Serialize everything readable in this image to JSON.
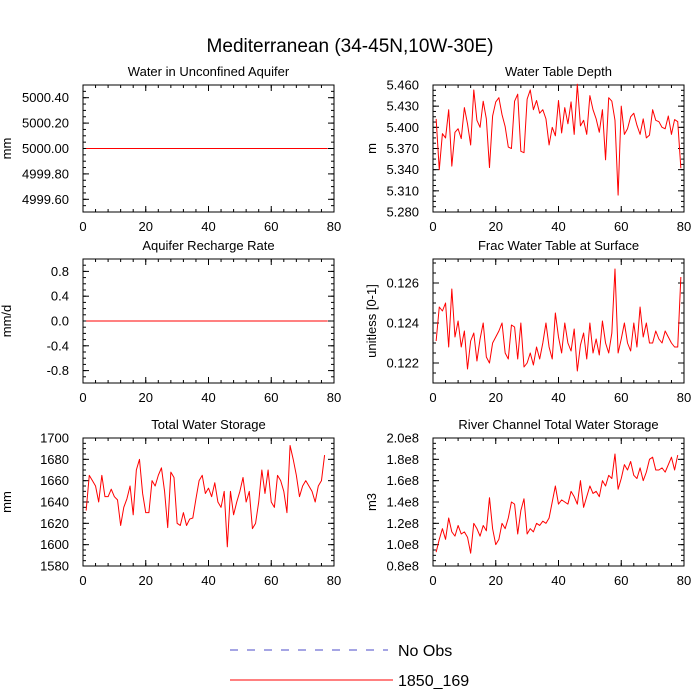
{
  "figure_title": "Mediterranean (34-45N,10W-30E)",
  "legend": [
    {
      "label": "No Obs",
      "color": "#4b4bc8",
      "style": "dashed"
    },
    {
      "label": "1850_169",
      "color": "#ff0000",
      "style": "solid"
    }
  ],
  "chart_data": [
    {
      "type": "line",
      "title": "Water in Unconfined Aquifer",
      "ylabel": "mm",
      "xlim": [
        0,
        80
      ],
      "ylim": [
        4999.5,
        5000.5
      ],
      "xticks": [
        0,
        20,
        40,
        60,
        80
      ],
      "xtick_labels": [
        "0",
        "20",
        "40",
        "60",
        "80"
      ],
      "yticks": [
        4999.6,
        4999.8,
        5000.0,
        5000.2,
        5000.4
      ],
      "ytick_labels": [
        "4999.60",
        "4999.80",
        "5000.00",
        "5000.20",
        "5000.40"
      ],
      "series": [
        {
          "name": "1850_169",
          "color": "#ff0000",
          "x_start": 1,
          "x_step": 1,
          "values": [
            5000,
            5000,
            5000,
            5000,
            5000,
            5000,
            5000,
            5000,
            5000,
            5000,
            5000,
            5000,
            5000,
            5000,
            5000,
            5000,
            5000,
            5000,
            5000,
            5000,
            5000,
            5000,
            5000,
            5000,
            5000,
            5000,
            5000,
            5000,
            5000,
            5000,
            5000,
            5000,
            5000,
            5000,
            5000,
            5000,
            5000,
            5000,
            5000,
            5000,
            5000,
            5000,
            5000,
            5000,
            5000,
            5000,
            5000,
            5000,
            5000,
            5000,
            5000,
            5000,
            5000,
            5000,
            5000,
            5000,
            5000,
            5000,
            5000,
            5000,
            5000,
            5000,
            5000,
            5000,
            5000,
            5000,
            5000,
            5000,
            5000,
            5000,
            5000,
            5000,
            5000,
            5000,
            5000,
            5000,
            5000,
            5000
          ]
        }
      ]
    },
    {
      "type": "line",
      "title": "Water Table Depth",
      "ylabel": "m",
      "xlim": [
        0,
        80
      ],
      "ylim": [
        5.28,
        5.46
      ],
      "xticks": [
        0,
        20,
        40,
        60,
        80
      ],
      "xtick_labels": [
        "0",
        "20",
        "40",
        "60",
        "80"
      ],
      "yticks": [
        5.28,
        5.31,
        5.34,
        5.37,
        5.4,
        5.43,
        5.46
      ],
      "ytick_labels": [
        "5.280",
        "5.310",
        "5.340",
        "5.370",
        "5.400",
        "5.430",
        "5.460"
      ],
      "series": [
        {
          "name": "1850_169",
          "color": "#ff0000",
          "x_start": 1,
          "x_step": 1,
          "values": [
            5.412,
            5.34,
            5.391,
            5.385,
            5.425,
            5.345,
            5.393,
            5.398,
            5.384,
            5.428,
            5.405,
            5.375,
            5.453,
            5.41,
            5.4,
            5.437,
            5.412,
            5.343,
            5.416,
            5.436,
            5.442,
            5.418,
            5.401,
            5.372,
            5.37,
            5.437,
            5.447,
            5.366,
            5.364,
            5.44,
            5.453,
            5.425,
            5.438,
            5.42,
            5.425,
            5.412,
            5.375,
            5.4,
            5.388,
            5.438,
            5.392,
            5.428,
            5.405,
            5.436,
            5.39,
            5.461,
            5.402,
            5.41,
            5.39,
            5.445,
            5.425,
            5.412,
            5.393,
            5.425,
            5.354,
            5.442,
            5.437,
            5.41,
            5.304,
            5.43,
            5.39,
            5.398,
            5.415,
            5.42,
            5.403,
            5.39,
            5.412,
            5.385,
            5.389,
            5.425,
            5.41,
            5.408,
            5.4,
            5.398,
            5.416,
            5.39,
            5.411,
            5.408,
            5.342
          ]
        }
      ]
    },
    {
      "type": "line",
      "title": "Aquifer Recharge Rate",
      "ylabel": "mm/d",
      "xlim": [
        0,
        80
      ],
      "ylim": [
        -1.0,
        1.0
      ],
      "xticks": [
        0,
        20,
        40,
        60,
        80
      ],
      "xtick_labels": [
        "0",
        "20",
        "40",
        "60",
        "80"
      ],
      "yticks": [
        -0.8,
        -0.4,
        0.0,
        0.4,
        0.8
      ],
      "ytick_labels": [
        "-0.8",
        "-0.4",
        "0.0",
        "0.4",
        "0.8"
      ],
      "series": [
        {
          "name": "1850_169",
          "color": "#ff0000",
          "x_start": 1,
          "x_step": 1,
          "values": [
            0,
            0,
            0,
            0,
            0,
            0,
            0,
            0,
            0,
            0,
            0,
            0,
            0,
            0,
            0,
            0,
            0,
            0,
            0,
            0,
            0,
            0,
            0,
            0,
            0,
            0,
            0,
            0,
            0,
            0,
            0,
            0,
            0,
            0,
            0,
            0,
            0,
            0,
            0,
            0,
            0,
            0,
            0,
            0,
            0,
            0,
            0,
            0,
            0,
            0,
            0,
            0,
            0,
            0,
            0,
            0,
            0,
            0,
            0,
            0,
            0,
            0,
            0,
            0,
            0,
            0,
            0,
            0,
            0,
            0,
            0,
            0,
            0,
            0,
            0,
            0,
            0,
            0
          ]
        }
      ]
    },
    {
      "type": "line",
      "title": "Frac Water Table at Surface",
      "ylabel": "unitless [0-1]",
      "xlim": [
        0,
        80
      ],
      "ylim": [
        0.121,
        0.1272
      ],
      "xticks": [
        0,
        20,
        40,
        60,
        80
      ],
      "xtick_labels": [
        "0",
        "20",
        "40",
        "60",
        "80"
      ],
      "yticks": [
        0.122,
        0.124,
        0.126
      ],
      "ytick_labels": [
        "0.122",
        "0.124",
        "0.126"
      ],
      "series": [
        {
          "name": "1850_169",
          "color": "#ff0000",
          "x_start": 1,
          "x_step": 1,
          "values": [
            0.1231,
            0.1248,
            0.1246,
            0.125,
            0.1228,
            0.1257,
            0.1233,
            0.1241,
            0.1228,
            0.1236,
            0.1217,
            0.1231,
            0.1235,
            0.1221,
            0.1232,
            0.124,
            0.1223,
            0.122,
            0.123,
            0.1233,
            0.1236,
            0.124,
            0.1225,
            0.1222,
            0.1239,
            0.1238,
            0.1222,
            0.124,
            0.1218,
            0.122,
            0.1225,
            0.1219,
            0.1228,
            0.1222,
            0.123,
            0.124,
            0.1228,
            0.1222,
            0.1245,
            0.1233,
            0.1225,
            0.124,
            0.123,
            0.1226,
            0.1237,
            0.1216,
            0.1229,
            0.1235,
            0.1222,
            0.124,
            0.1225,
            0.1232,
            0.1224,
            0.1241,
            0.123,
            0.1225,
            0.1235,
            0.1267,
            0.1225,
            0.1232,
            0.124,
            0.123,
            0.1226,
            0.124,
            0.1228,
            0.1248,
            0.1233,
            0.124,
            0.123,
            0.123,
            0.1236,
            0.1232,
            0.123,
            0.1236,
            0.1233,
            0.123,
            0.1228,
            0.1228,
            0.1263
          ]
        }
      ]
    },
    {
      "type": "line",
      "title": "Total Water Storage",
      "ylabel": "mm",
      "xlim": [
        0,
        80
      ],
      "ylim": [
        1580,
        1700
      ],
      "xticks": [
        0,
        20,
        40,
        60,
        80
      ],
      "xtick_labels": [
        "0",
        "20",
        "40",
        "60",
        "80"
      ],
      "yticks": [
        1580,
        1600,
        1620,
        1640,
        1660,
        1680,
        1700
      ],
      "ytick_labels": [
        "1580",
        "1600",
        "1620",
        "1640",
        "1660",
        "1680",
        "1700"
      ],
      "series": [
        {
          "name": "1850_169",
          "color": "#ff0000",
          "x_start": 1,
          "x_step": 1,
          "values": [
            1632,
            1665,
            1660,
            1655,
            1640,
            1665,
            1645,
            1645,
            1652,
            1645,
            1642,
            1618,
            1635,
            1643,
            1655,
            1628,
            1670,
            1680,
            1648,
            1630,
            1630,
            1660,
            1655,
            1665,
            1672,
            1650,
            1616,
            1668,
            1663,
            1620,
            1618,
            1630,
            1618,
            1624,
            1625,
            1643,
            1660,
            1665,
            1648,
            1653,
            1645,
            1658,
            1640,
            1635,
            1650,
            1598,
            1650,
            1628,
            1640,
            1650,
            1663,
            1640,
            1650,
            1615,
            1620,
            1640,
            1670,
            1648,
            1670,
            1640,
            1635,
            1665,
            1660,
            1650,
            1630,
            1693,
            1680,
            1665,
            1645,
            1655,
            1660,
            1655,
            1650,
            1640,
            1655,
            1660,
            1684
          ]
        }
      ]
    },
    {
      "type": "line",
      "title": "River Channel Total Water Storage",
      "ylabel": "m3",
      "xlim": [
        0,
        80
      ],
      "ylim": [
        80000000.0,
        200000000.0
      ],
      "xticks": [
        0,
        20,
        40,
        60,
        80
      ],
      "xtick_labels": [
        "0",
        "20",
        "40",
        "60",
        "80"
      ],
      "yticks": [
        80000000.0,
        100000000.0,
        120000000.0,
        140000000.0,
        160000000.0,
        180000000.0,
        200000000.0
      ],
      "ytick_labels": [
        "0.8e8",
        "1.0e8",
        "1.2e8",
        "1.4e8",
        "1.6e8",
        "1.8e8",
        "2.0e8"
      ],
      "series": [
        {
          "name": "1850_169",
          "color": "#ff0000",
          "x_start": 1,
          "x_step": 1,
          "values": [
            93000000.0,
            105000000.0,
            115000000.0,
            105000000.0,
            125000000.0,
            112000000.0,
            108000000.0,
            118000000.0,
            110000000.0,
            112000000.0,
            107000000.0,
            92000000.0,
            120000000.0,
            115000000.0,
            108000000.0,
            118000000.0,
            113000000.0,
            144000000.0,
            115000000.0,
            100000000.0,
            105000000.0,
            120000000.0,
            115000000.0,
            125000000.0,
            140000000.0,
            138000000.0,
            110000000.0,
            132000000.0,
            143000000.0,
            110000000.0,
            115000000.0,
            112000000.0,
            120000000.0,
            118000000.0,
            122000000.0,
            120000000.0,
            125000000.0,
            140000000.0,
            155000000.0,
            138000000.0,
            142000000.0,
            140000000.0,
            138000000.0,
            150000000.0,
            145000000.0,
            138000000.0,
            160000000.0,
            135000000.0,
            145000000.0,
            155000000.0,
            148000000.0,
            150000000.0,
            145000000.0,
            160000000.0,
            155000000.0,
            165000000.0,
            162000000.0,
            185000000.0,
            152000000.0,
            162000000.0,
            175000000.0,
            170000000.0,
            178000000.0,
            165000000.0,
            162000000.0,
            172000000.0,
            160000000.0,
            168000000.0,
            180000000.0,
            182000000.0,
            170000000.0,
            170000000.0,
            172000000.0,
            168000000.0,
            175000000.0,
            182000000.0,
            170000000.0,
            184000000.0
          ]
        }
      ]
    }
  ]
}
